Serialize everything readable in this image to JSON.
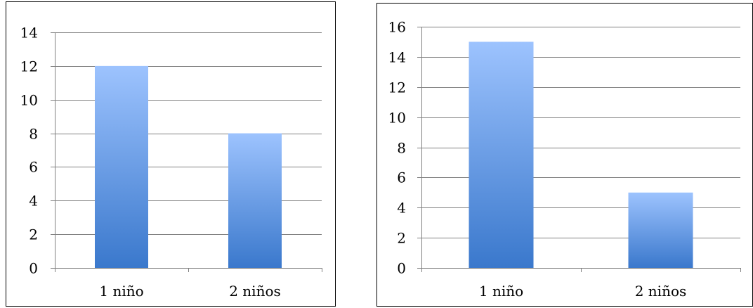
{
  "chart_data": [
    {
      "type": "bar",
      "categories": [
        "1 niño",
        "2 niños"
      ],
      "values": [
        12,
        8
      ],
      "ylim": [
        0,
        14
      ],
      "yticks": [
        0,
        2,
        4,
        6,
        8,
        10,
        12,
        14
      ],
      "grid": true,
      "legend": "none",
      "bar_gradient": [
        "#9dc3fe",
        "#3a78cc"
      ]
    },
    {
      "type": "bar",
      "categories": [
        "1 niño",
        "2 niños"
      ],
      "values": [
        15,
        5
      ],
      "ylim": [
        0,
        16
      ],
      "yticks": [
        0,
        2,
        4,
        6,
        8,
        10,
        12,
        14,
        16
      ],
      "grid": true,
      "legend": "none",
      "bar_gradient": [
        "#9dc3fe",
        "#3a78cc"
      ]
    }
  ]
}
